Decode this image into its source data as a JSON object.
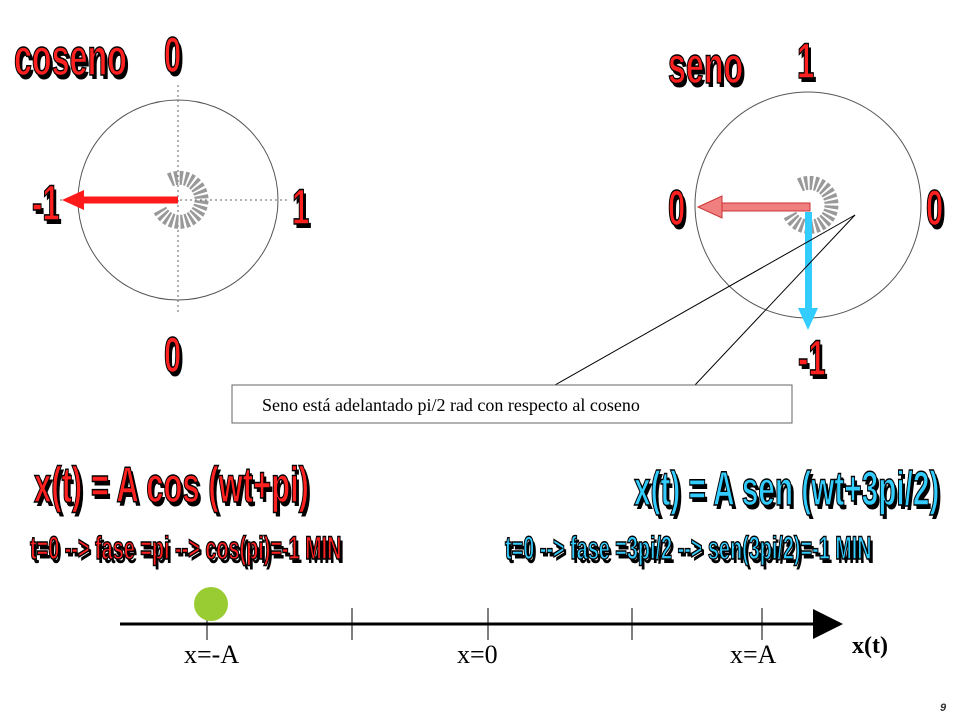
{
  "left": {
    "title": "coseno",
    "top": "0",
    "left": "-1",
    "right": "1",
    "bottom": "0"
  },
  "right": {
    "title": "seno",
    "top": "1",
    "left": "0",
    "right": "0",
    "bottom": "-1"
  },
  "callout": "Seno está adelantado pi/2 rad con respecto al coseno",
  "equations": {
    "cos": "x(t) = A cos (wt+pi)",
    "cos_note": "t=0 --> fase =pi --> cos(pi)=-1 MIN",
    "sen": "x(t) = A sen (wt+3pi/2)",
    "sen_note": "t=0 --> fase =3pi/2 --> sen(3pi/2)=-1 MIN"
  },
  "axis": {
    "minus_a": "x=-A",
    "zero": "x=0",
    "plus_a": "x=A",
    "name": "x(t)"
  },
  "page": "9"
}
